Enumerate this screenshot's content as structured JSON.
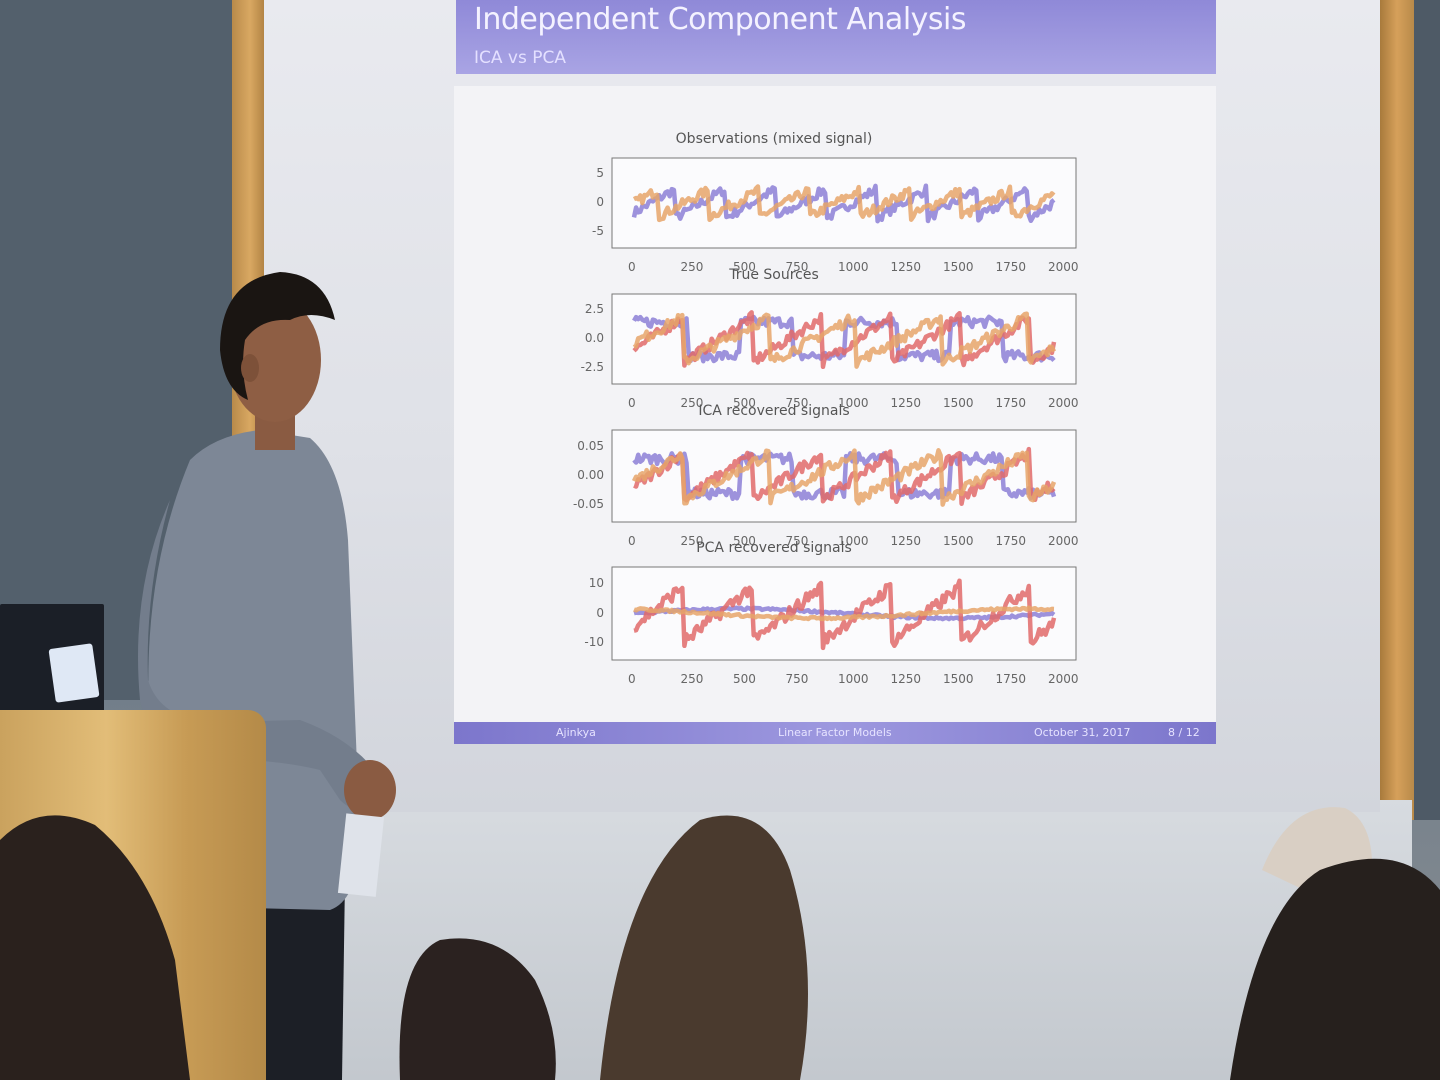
{
  "slide": {
    "title": "Independent Component Analysis",
    "subtitle": "ICA vs PCA"
  },
  "chart_data": [
    {
      "type": "line",
      "title": "Observations (mixed signal)",
      "xlim": [
        0,
        2000
      ],
      "xticks": [
        "0",
        "250",
        "500",
        "750",
        "1000",
        "1250",
        "1500",
        "1750",
        "2000"
      ],
      "yticks": [
        "5",
        "0",
        "-5"
      ],
      "ylim": [
        -7,
        7
      ],
      "series_colors": [
        "#8c7fd6",
        "#e6a46a"
      ]
    },
    {
      "type": "line",
      "title": "True Sources",
      "xlim": [
        0,
        2000
      ],
      "xticks": [
        "0",
        "250",
        "500",
        "750",
        "1000",
        "1250",
        "1500",
        "1750",
        "2000"
      ],
      "yticks": [
        "2.5",
        "0.0",
        "-2.5"
      ],
      "ylim": [
        -3.2,
        3.2
      ],
      "series_colors": [
        "#8c7fd6",
        "#e06a6a",
        "#e6a46a"
      ]
    },
    {
      "type": "line",
      "title": "ICA recovered signals",
      "xlim": [
        0,
        2000
      ],
      "xticks": [
        "0",
        "250",
        "500",
        "750",
        "1000",
        "1250",
        "1500",
        "1750",
        "2000"
      ],
      "yticks": [
        "0.05",
        "0.00",
        "-0.05"
      ],
      "ylim": [
        -0.07,
        0.07
      ],
      "series_colors": [
        "#8c7fd6",
        "#e06a6a",
        "#e6a46a"
      ]
    },
    {
      "type": "line",
      "title": "PCA recovered signals",
      "xlim": [
        0,
        2000
      ],
      "xticks": [
        "0",
        "250",
        "500",
        "750",
        "1000",
        "1250",
        "1500",
        "1750",
        "2000"
      ],
      "yticks": [
        "10",
        "0",
        "-10"
      ],
      "ylim": [
        -12,
        12
      ],
      "series_colors": [
        "#8c7fd6",
        "#e06a6a",
        "#e6a46a"
      ]
    }
  ],
  "footer": {
    "author": "Ajinkya",
    "talk": "Linear Factor Models",
    "date": "October 31, 2017",
    "page": "8 / 12"
  }
}
